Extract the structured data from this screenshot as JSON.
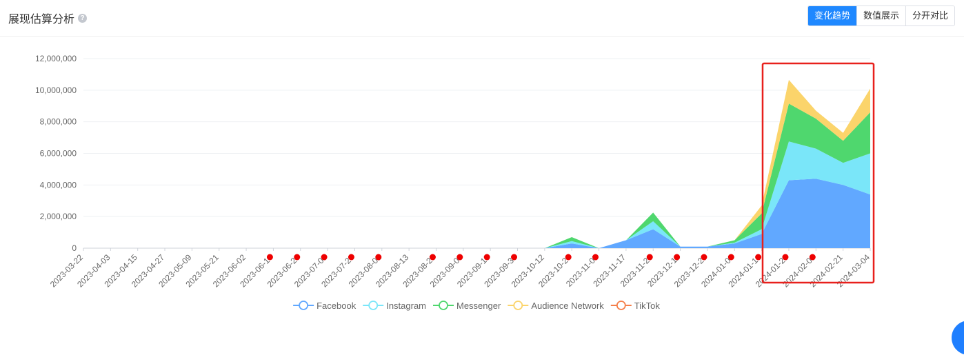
{
  "header": {
    "title": "展现估算分析",
    "help_icon": "question-circle-icon",
    "tabs": [
      {
        "label": "变化趋势",
        "active": true
      },
      {
        "label": "数值展示",
        "active": false
      },
      {
        "label": "分开对比",
        "active": false
      }
    ]
  },
  "chart_data": {
    "type": "area",
    "stacked": true,
    "ylim": [
      0,
      12000000
    ],
    "yticks": [
      "0",
      "2,000,000",
      "4,000,000",
      "6,000,000",
      "8,000,000",
      "10,000,000",
      "12,000,000"
    ],
    "x": [
      "2023-03-22",
      "2023-04-03",
      "2023-04-15",
      "2023-04-27",
      "2023-05-09",
      "2023-05-21",
      "2023-06-02",
      "2023-06-14",
      "2023-06-26",
      "2023-07-08",
      "2023-07-20",
      "2023-08-01",
      "2023-08-13",
      "2023-08-25",
      "2023-09-06",
      "2023-09-18",
      "2023-09-30",
      "2023-10-12",
      "2023-10-24",
      "2023-11-05",
      "2023-11-17",
      "2023-11-29",
      "2023-12-11",
      "2023-12-23",
      "2024-01-04",
      "2024-01-16",
      "2024-01-28",
      "2024-02-09",
      "2024-02-21",
      "2024-03-04"
    ],
    "missing_data_marker_dates": [
      "2023-06-14",
      "2023-06-26",
      "2023-07-08",
      "2023-07-20",
      "2023-08-01",
      "2023-08-25",
      "2023-09-06",
      "2023-09-18",
      "2023-09-30",
      "2023-10-24",
      "2023-11-05",
      "2023-11-29",
      "2023-12-11",
      "2023-12-23",
      "2024-01-04",
      "2024-01-16",
      "2024-01-28",
      "2024-02-09"
    ],
    "series": [
      {
        "name": "Facebook",
        "color": "#61a8ff",
        "values": [
          0,
          0,
          0,
          0,
          0,
          0,
          0,
          0,
          0,
          0,
          0,
          0,
          0,
          0,
          0,
          0,
          0,
          0,
          300000,
          0,
          500000,
          1200000,
          100000,
          100000,
          300000,
          900000,
          4300000,
          4400000,
          4000000,
          3400000
        ]
      },
      {
        "name": "Instagram",
        "color": "#7ae6f9",
        "values": [
          0,
          0,
          0,
          0,
          0,
          0,
          0,
          0,
          0,
          0,
          0,
          0,
          0,
          0,
          0,
          0,
          0,
          0,
          150000,
          0,
          0,
          500000,
          0,
          0,
          50000,
          300000,
          2450000,
          1900000,
          1400000,
          2600000
        ]
      },
      {
        "name": "Messenger",
        "color": "#4fd76e",
        "values": [
          0,
          0,
          0,
          0,
          0,
          0,
          0,
          0,
          0,
          0,
          0,
          0,
          0,
          0,
          0,
          0,
          0,
          0,
          250000,
          0,
          0,
          550000,
          0,
          0,
          150000,
          1000000,
          2400000,
          1900000,
          1400000,
          2600000
        ]
      },
      {
        "name": "Audience Network",
        "color": "#fbd46b",
        "values": [
          0,
          0,
          0,
          0,
          0,
          0,
          0,
          0,
          0,
          0,
          0,
          0,
          0,
          0,
          0,
          0,
          0,
          0,
          0,
          0,
          0,
          0,
          0,
          0,
          0,
          500000,
          1500000,
          500000,
          500000,
          1500000
        ]
      },
      {
        "name": "TikTok",
        "color": "#f57f4a",
        "values": [
          0,
          0,
          0,
          0,
          0,
          0,
          0,
          0,
          0,
          0,
          0,
          0,
          0,
          0,
          0,
          0,
          0,
          0,
          0,
          0,
          0,
          0,
          0,
          0,
          0,
          0,
          0,
          0,
          0,
          0
        ]
      }
    ],
    "legend_position": "bottom",
    "grid": true,
    "highlight_range": [
      "2024-01-28",
      "2024-03-04"
    ],
    "highlight_color": "#e8201c",
    "marker_color": "#ee0000"
  }
}
